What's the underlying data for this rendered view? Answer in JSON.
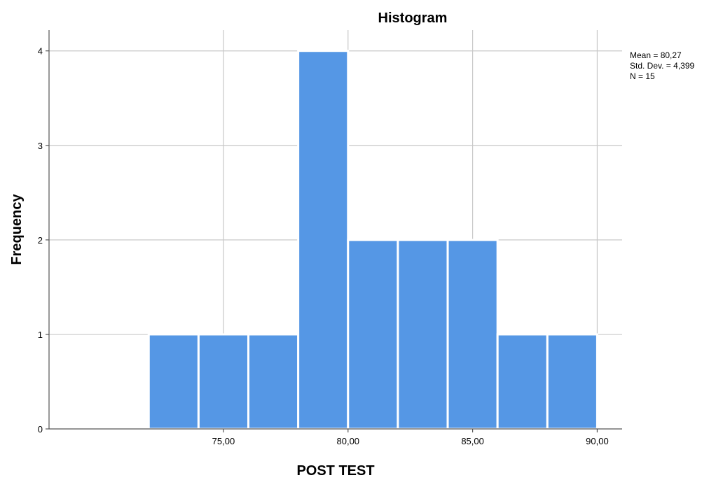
{
  "chart_data": {
    "type": "bar",
    "title": "Histogram",
    "xlabel": "POST TEST",
    "ylabel": "Frequency",
    "bins": [
      {
        "start": 72,
        "end": 74,
        "count": 1
      },
      {
        "start": 74,
        "end": 76,
        "count": 1
      },
      {
        "start": 76,
        "end": 78,
        "count": 1
      },
      {
        "start": 78,
        "end": 80,
        "count": 4
      },
      {
        "start": 80,
        "end": 82,
        "count": 2
      },
      {
        "start": 82,
        "end": 84,
        "count": 2
      },
      {
        "start": 84,
        "end": 86,
        "count": 2
      },
      {
        "start": 86,
        "end": 88,
        "count": 1
      },
      {
        "start": 88,
        "end": 90,
        "count": 1
      }
    ],
    "xlim": [
      68,
      91
    ],
    "ylim": [
      0,
      4.22
    ],
    "x_ticks": [
      {
        "value": 75,
        "label": "75,00"
      },
      {
        "value": 80,
        "label": "80,00"
      },
      {
        "value": 85,
        "label": "85,00"
      },
      {
        "value": 90,
        "label": "90,00"
      }
    ],
    "y_ticks": [
      {
        "value": 0,
        "label": "0"
      },
      {
        "value": 1,
        "label": "1"
      },
      {
        "value": 2,
        "label": "2"
      },
      {
        "value": 3,
        "label": "3"
      },
      {
        "value": 4,
        "label": "4"
      }
    ],
    "grid": true,
    "bar_color": "#5597e5",
    "stats": {
      "mean": "Mean = 80,27",
      "std_dev": "Std. Dev. = 4,399",
      "n": "N = 15"
    }
  }
}
